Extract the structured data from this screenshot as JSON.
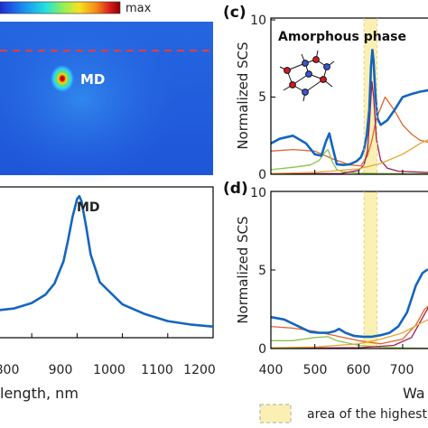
{
  "colorbar": {
    "max_label": "max",
    "colors": [
      "#1f2bd6",
      "#1b8ff0",
      "#22e0e0",
      "#8df05a",
      "#f7e21f",
      "#f58a16",
      "#d7191c",
      "#8b0000"
    ]
  },
  "field_map": {
    "mode_label": "MD",
    "background": "#2f6fe8",
    "dashed_line_color": "#ff3b3b",
    "hotspot_colors": [
      "#8b0000",
      "#ffd400",
      "#61e36a",
      "#33d0ff"
    ]
  },
  "bottom_left": {
    "peak_label": "MD",
    "x_axis_title_visible": "length, nm",
    "x_tick_labels": [
      "800",
      "900",
      "1000",
      "1100",
      "1200"
    ]
  },
  "panel_c": {
    "label": "(c)",
    "phase_label": "Amorphous phase",
    "y_axis_title": "Normalized SCS",
    "y_tick_labels": [
      "0",
      "5",
      "10"
    ]
  },
  "panel_d": {
    "label": "(d)",
    "y_axis_title": "Normalized SCS",
    "y_tick_labels": [
      "0",
      "5",
      "10"
    ],
    "x_tick_labels": [
      "400",
      "500",
      "600",
      "700"
    ],
    "x_axis_title_visible": "Wa"
  },
  "legend": {
    "highlight_text": "area of the highest"
  },
  "chart_data": [
    {
      "type": "line",
      "title": "",
      "xlabel": "Wavelength, nm",
      "ylabel": "",
      "xlim": [
        730,
        1200
      ],
      "ylim": [
        0,
        1.08
      ],
      "series": [
        {
          "color": "#1565c0",
          "x": [
            730,
            760,
            800,
            830,
            850,
            870,
            880,
            890,
            900,
            905,
            910,
            920,
            930,
            950,
            1000,
            1050,
            1100,
            1150,
            1200
          ],
          "y": [
            0.2,
            0.21,
            0.25,
            0.31,
            0.39,
            0.55,
            0.7,
            0.87,
            1.0,
            1.02,
            0.98,
            0.8,
            0.6,
            0.4,
            0.24,
            0.17,
            0.12,
            0.095,
            0.08
          ]
        }
      ]
    },
    {
      "type": "line",
      "title": "",
      "xlabel": "",
      "ylabel": "Normalized SCS",
      "xlim": [
        400,
        770
      ],
      "ylim": [
        0,
        10
      ],
      "highlight_band": [
        612,
        642
      ],
      "series": [
        {
          "color": "#1565c0",
          "x": [
            400,
            420,
            450,
            480,
            500,
            515,
            525,
            533,
            540,
            550,
            565,
            580,
            595,
            605,
            612,
            618,
            624,
            628,
            631,
            634,
            638,
            643,
            650,
            665,
            680,
            700,
            720,
            740,
            760,
            770
          ],
          "y": [
            2.0,
            2.3,
            2.5,
            2.0,
            1.3,
            1.2,
            2.1,
            2.65,
            1.8,
            0.65,
            0.6,
            0.65,
            0.85,
            1.1,
            1.6,
            2.5,
            4.2,
            7.0,
            8.05,
            7.3,
            5.1,
            3.6,
            3.2,
            3.5,
            4.1,
            5.0,
            5.2,
            5.35,
            5.45,
            5.5
          ]
        },
        {
          "color": "#e0642a",
          "x": [
            400,
            450,
            500,
            540,
            580,
            605,
            620,
            630,
            640,
            660,
            680,
            700,
            720,
            740,
            770
          ],
          "y": [
            1.5,
            1.6,
            1.5,
            1.0,
            0.6,
            0.55,
            1.2,
            2.2,
            3.6,
            5.0,
            4.2,
            3.2,
            2.6,
            2.2,
            2.0
          ]
        },
        {
          "color": "#8bc34a",
          "x": [
            400,
            450,
            490,
            510,
            522,
            530,
            540,
            550,
            565,
            600,
            650,
            700,
            770
          ],
          "y": [
            0.3,
            0.45,
            0.6,
            0.9,
            1.4,
            1.6,
            0.8,
            0.3,
            0.15,
            0.08,
            0.05,
            0.04,
            0.03
          ]
        },
        {
          "color": "#9c1f4f",
          "x": [
            400,
            560,
            600,
            612,
            620,
            626,
            630,
            634,
            640,
            650,
            665,
            690,
            770
          ],
          "y": [
            0.02,
            0.05,
            0.25,
            0.6,
            1.5,
            4.0,
            6.0,
            5.0,
            2.3,
            0.9,
            0.4,
            0.2,
            0.1
          ]
        },
        {
          "color": "#e6a532",
          "x": [
            400,
            500,
            600,
            650,
            700,
            740,
            770
          ],
          "y": [
            0.05,
            0.12,
            0.35,
            0.7,
            1.3,
            2.0,
            2.4
          ]
        }
      ]
    },
    {
      "type": "line",
      "title": "",
      "xlabel": "Wavelength",
      "ylabel": "Normalized SCS",
      "xlim": [
        400,
        770
      ],
      "ylim": [
        0,
        10
      ],
      "highlight_band": [
        612,
        642
      ],
      "series": [
        {
          "color": "#1565c0",
          "x": [
            400,
            430,
            460,
            490,
            510,
            530,
            545,
            555,
            570,
            590,
            610,
            630,
            650,
            670,
            690,
            710,
            730,
            745,
            755,
            770
          ],
          "y": [
            2.0,
            1.85,
            1.45,
            1.05,
            1.0,
            1.0,
            1.1,
            1.25,
            1.0,
            0.8,
            0.75,
            0.75,
            0.85,
            1.0,
            1.4,
            2.3,
            4.0,
            4.8,
            5.0,
            5.05
          ]
        },
        {
          "color": "#e0642a",
          "x": [
            400,
            450,
            500,
            550,
            600,
            650,
            700,
            730,
            750,
            770
          ],
          "y": [
            1.4,
            1.3,
            1.1,
            0.8,
            0.5,
            0.3,
            0.6,
            1.5,
            2.5,
            3.0
          ]
        },
        {
          "color": "#8bc34a",
          "x": [
            400,
            450,
            500,
            530,
            550,
            600,
            650,
            700,
            770
          ],
          "y": [
            0.5,
            0.5,
            0.7,
            0.75,
            0.5,
            0.2,
            0.08,
            0.04,
            0.02
          ]
        },
        {
          "color": "#9c1f4f",
          "x": [
            400,
            600,
            680,
            720,
            750,
            770
          ],
          "y": [
            0.02,
            0.05,
            0.2,
            0.7,
            2.2,
            3.2
          ]
        },
        {
          "color": "#e6a532",
          "x": [
            400,
            500,
            600,
            650,
            700,
            740,
            770
          ],
          "y": [
            0.05,
            0.1,
            0.3,
            0.6,
            1.0,
            1.6,
            2.0
          ]
        }
      ]
    }
  ]
}
